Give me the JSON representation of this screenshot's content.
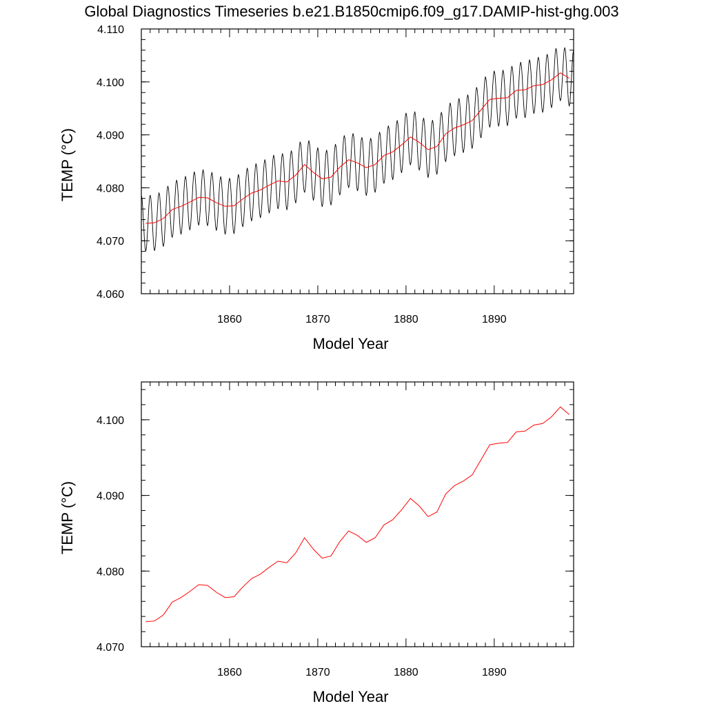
{
  "figure": {
    "title": "Global Diagnostics Timeseries b.e21.B1850cmip6.f09_g17.DAMIP-hist-ghg.003"
  },
  "chart_data": [
    {
      "type": "line",
      "xlabel": "Model Year",
      "ylabel": "TEMP (°C)",
      "xlim": [
        1850.0,
        1899.0
      ],
      "ylim": [
        4.06,
        4.11
      ],
      "xticks": [
        1860,
        1870,
        1880,
        1890
      ],
      "xtick_labels": [
        "1860",
        "1870",
        "1880",
        "1890"
      ],
      "yticks": [
        4.06,
        4.07,
        4.08,
        4.09,
        4.1,
        4.11
      ],
      "ytick_labels": [
        "4.060",
        "4.070",
        "4.080",
        "4.090",
        "4.100",
        "4.110"
      ],
      "series": [
        {
          "kind": "monthly",
          "color": "#000000",
          "seasonal_amplitude": 0.0053,
          "x": [
            1850.5,
            1851.5,
            1852.5,
            1853.5,
            1854.5,
            1855.5,
            1856.5,
            1857.5,
            1858.5,
            1859.5,
            1860.5,
            1861.5,
            1862.5,
            1863.5,
            1864.5,
            1865.5,
            1866.5,
            1867.5,
            1868.5,
            1869.5,
            1870.5,
            1871.5,
            1872.5,
            1873.5,
            1874.5,
            1875.5,
            1876.5,
            1877.5,
            1878.5,
            1879.5,
            1880.5,
            1881.5,
            1882.5,
            1883.5,
            1884.5,
            1885.5,
            1886.5,
            1887.5,
            1888.5,
            1889.5,
            1890.5,
            1891.5,
            1892.5,
            1893.5,
            1894.5,
            1895.5,
            1896.5,
            1897.5,
            1898.5
          ],
          "annual_mean": [
            4.0733,
            4.0734,
            4.0742,
            4.0759,
            4.0765,
            4.0773,
            4.0782,
            4.0781,
            4.0772,
            4.0765,
            4.0766,
            4.0779,
            4.079,
            4.0796,
            4.0805,
            4.0813,
            4.0811,
            4.0824,
            4.0844,
            4.0829,
            4.0817,
            4.082,
            4.0839,
            4.0853,
            4.0847,
            4.0838,
            4.0844,
            4.0861,
            4.0868,
            4.0881,
            4.0896,
            4.0886,
            4.0872,
            4.0878,
            4.0902,
            4.0913,
            4.0919,
            4.0927,
            4.0947,
            4.0967,
            4.0969,
            4.097,
            4.0984,
            4.0985,
            4.0993,
            4.0995,
            4.1004,
            4.1017,
            4.1007
          ]
        },
        {
          "kind": "annual",
          "color": "#ff0000",
          "x": [
            1850.5,
            1851.5,
            1852.5,
            1853.5,
            1854.5,
            1855.5,
            1856.5,
            1857.5,
            1858.5,
            1859.5,
            1860.5,
            1861.5,
            1862.5,
            1863.5,
            1864.5,
            1865.5,
            1866.5,
            1867.5,
            1868.5,
            1869.5,
            1870.5,
            1871.5,
            1872.5,
            1873.5,
            1874.5,
            1875.5,
            1876.5,
            1877.5,
            1878.5,
            1879.5,
            1880.5,
            1881.5,
            1882.5,
            1883.5,
            1884.5,
            1885.5,
            1886.5,
            1887.5,
            1888.5,
            1889.5,
            1890.5,
            1891.5,
            1892.5,
            1893.5,
            1894.5,
            1895.5,
            1896.5,
            1897.5,
            1898.5
          ],
          "values": [
            4.0733,
            4.0734,
            4.0742,
            4.0759,
            4.0765,
            4.0773,
            4.0782,
            4.0781,
            4.0772,
            4.0765,
            4.0766,
            4.0779,
            4.079,
            4.0796,
            4.0805,
            4.0813,
            4.0811,
            4.0824,
            4.0844,
            4.0829,
            4.0817,
            4.082,
            4.0839,
            4.0853,
            4.0847,
            4.0838,
            4.0844,
            4.0861,
            4.0868,
            4.0881,
            4.0896,
            4.0886,
            4.0872,
            4.0878,
            4.0902,
            4.0913,
            4.0919,
            4.0927,
            4.0947,
            4.0967,
            4.0969,
            4.097,
            4.0984,
            4.0985,
            4.0993,
            4.0995,
            4.1004,
            4.1017,
            4.1007
          ]
        }
      ]
    },
    {
      "type": "line",
      "xlabel": "Model Year",
      "ylabel": "TEMP (°C)",
      "xlim": [
        1850.0,
        1899.0
      ],
      "ylim": [
        4.07,
        4.105
      ],
      "xticks": [
        1860,
        1870,
        1880,
        1890
      ],
      "xtick_labels": [
        "1860",
        "1870",
        "1880",
        "1890"
      ],
      "yticks": [
        4.07,
        4.08,
        4.09,
        4.1
      ],
      "ytick_labels": [
        "4.070",
        "4.080",
        "4.090",
        "4.100"
      ],
      "series": [
        {
          "kind": "annual",
          "color": "#ff0000",
          "x": [
            1850.5,
            1851.5,
            1852.5,
            1853.5,
            1854.5,
            1855.5,
            1856.5,
            1857.5,
            1858.5,
            1859.5,
            1860.5,
            1861.5,
            1862.5,
            1863.5,
            1864.5,
            1865.5,
            1866.5,
            1867.5,
            1868.5,
            1869.5,
            1870.5,
            1871.5,
            1872.5,
            1873.5,
            1874.5,
            1875.5,
            1876.5,
            1877.5,
            1878.5,
            1879.5,
            1880.5,
            1881.5,
            1882.5,
            1883.5,
            1884.5,
            1885.5,
            1886.5,
            1887.5,
            1888.5,
            1889.5,
            1890.5,
            1891.5,
            1892.5,
            1893.5,
            1894.5,
            1895.5,
            1896.5,
            1897.5,
            1898.5
          ],
          "values": [
            4.0733,
            4.0734,
            4.0742,
            4.0759,
            4.0765,
            4.0773,
            4.0782,
            4.0781,
            4.0772,
            4.0765,
            4.0766,
            4.0779,
            4.079,
            4.0796,
            4.0805,
            4.0813,
            4.0811,
            4.0824,
            4.0844,
            4.0829,
            4.0817,
            4.082,
            4.0839,
            4.0853,
            4.0847,
            4.0838,
            4.0844,
            4.0861,
            4.0868,
            4.0881,
            4.0896,
            4.0886,
            4.0872,
            4.0878,
            4.0902,
            4.0913,
            4.0919,
            4.0927,
            4.0947,
            4.0967,
            4.0969,
            4.097,
            4.0984,
            4.0985,
            4.0993,
            4.0995,
            4.1004,
            4.1017,
            4.1007
          ]
        }
      ]
    }
  ]
}
